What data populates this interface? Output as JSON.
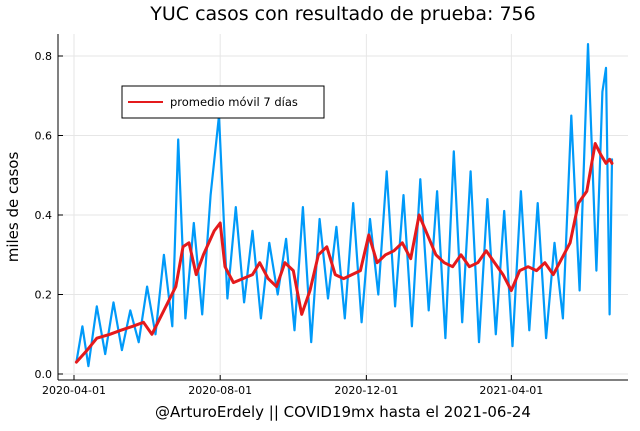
{
  "chart_data": {
    "type": "line",
    "title": "YUC casos con resultado de prueba: 756",
    "xlabel": "@ArturoErdely || COVID19mx hasta el 2021-06-24",
    "ylabel": "miles de casos",
    "x_range": [
      "2020-04-01",
      "2021-06-24"
    ],
    "ylim": [
      0,
      0.86
    ],
    "x_ticks": [
      {
        "date": "2020-04-01",
        "label": "2020-04-01"
      },
      {
        "date": "2020-08-01",
        "label": "2020-08-01"
      },
      {
        "date": "2020-12-01",
        "label": "2020-12-01"
      },
      {
        "date": "2021-04-01",
        "label": "2021-04-01"
      }
    ],
    "y_ticks": [
      {
        "value": 0.0,
        "label": "0.0"
      },
      {
        "value": 0.2,
        "label": "0.2"
      },
      {
        "value": 0.4,
        "label": "0.4"
      },
      {
        "value": 0.6,
        "label": "0.6"
      },
      {
        "value": 0.8,
        "label": "0.8"
      }
    ],
    "grid": true,
    "legend": {
      "placement": "top-left",
      "entries": [
        "promedio móvil 7 días"
      ]
    },
    "colors": {
      "daily": "#009af9",
      "avg": "#e41a1c"
    },
    "series": [
      {
        "name": "",
        "color": "#009af9",
        "x": [
          "2020-04-03",
          "2020-04-08",
          "2020-04-13",
          "2020-04-20",
          "2020-04-27",
          "2020-05-04",
          "2020-05-11",
          "2020-05-18",
          "2020-05-25",
          "2020-06-01",
          "2020-06-08",
          "2020-06-15",
          "2020-06-22",
          "2020-06-27",
          "2020-07-03",
          "2020-07-10",
          "2020-07-17",
          "2020-07-24",
          "2020-07-31",
          "2020-08-07",
          "2020-08-14",
          "2020-08-21",
          "2020-08-28",
          "2020-09-04",
          "2020-09-11",
          "2020-09-18",
          "2020-09-25",
          "2020-10-02",
          "2020-10-09",
          "2020-10-16",
          "2020-10-23",
          "2020-10-30",
          "2020-11-06",
          "2020-11-13",
          "2020-11-20",
          "2020-11-27",
          "2020-12-04",
          "2020-12-11",
          "2020-12-18",
          "2020-12-25",
          "2021-01-01",
          "2021-01-08",
          "2021-01-15",
          "2021-01-22",
          "2021-01-29",
          "2021-02-05",
          "2021-02-12",
          "2021-02-19",
          "2021-02-26",
          "2021-03-05",
          "2021-03-12",
          "2021-03-19",
          "2021-03-26",
          "2021-04-02",
          "2021-04-09",
          "2021-04-16",
          "2021-04-23",
          "2021-04-30",
          "2021-05-07",
          "2021-05-14",
          "2021-05-21",
          "2021-05-28",
          "2021-06-04",
          "2021-06-11",
          "2021-06-16",
          "2021-06-19",
          "2021-06-22",
          "2021-06-24"
        ],
        "values": [
          0.03,
          0.12,
          0.02,
          0.17,
          0.05,
          0.18,
          0.06,
          0.16,
          0.08,
          0.22,
          0.1,
          0.3,
          0.12,
          0.59,
          0.14,
          0.38,
          0.15,
          0.45,
          0.65,
          0.19,
          0.42,
          0.18,
          0.36,
          0.14,
          0.33,
          0.2,
          0.34,
          0.11,
          0.42,
          0.08,
          0.39,
          0.19,
          0.37,
          0.14,
          0.43,
          0.13,
          0.39,
          0.2,
          0.51,
          0.17,
          0.45,
          0.12,
          0.49,
          0.16,
          0.46,
          0.09,
          0.56,
          0.13,
          0.51,
          0.08,
          0.44,
          0.1,
          0.41,
          0.07,
          0.46,
          0.11,
          0.43,
          0.09,
          0.33,
          0.14,
          0.65,
          0.21,
          0.83,
          0.26,
          0.71,
          0.77,
          0.15,
          0.54
        ]
      },
      {
        "name": "promedio móvil 7 días",
        "color": "#e41a1c",
        "x": [
          "2020-04-03",
          "2020-04-12",
          "2020-04-20",
          "2020-05-01",
          "2020-05-10",
          "2020-05-20",
          "2020-05-29",
          "2020-06-05",
          "2020-06-15",
          "2020-06-25",
          "2020-07-01",
          "2020-07-06",
          "2020-07-12",
          "2020-07-18",
          "2020-07-27",
          "2020-08-01",
          "2020-08-05",
          "2020-08-12",
          "2020-08-20",
          "2020-08-28",
          "2020-09-03",
          "2020-09-10",
          "2020-09-17",
          "2020-09-24",
          "2020-10-01",
          "2020-10-08",
          "2020-10-15",
          "2020-10-22",
          "2020-10-29",
          "2020-11-05",
          "2020-11-12",
          "2020-11-19",
          "2020-11-26",
          "2020-12-03",
          "2020-12-10",
          "2020-12-17",
          "2020-12-24",
          "2020-12-31",
          "2021-01-07",
          "2021-01-14",
          "2021-01-21",
          "2021-01-28",
          "2021-02-04",
          "2021-02-11",
          "2021-02-18",
          "2021-02-25",
          "2021-03-04",
          "2021-03-11",
          "2021-03-18",
          "2021-03-25",
          "2021-04-01",
          "2021-04-08",
          "2021-04-15",
          "2021-04-22",
          "2021-04-29",
          "2021-05-06",
          "2021-05-13",
          "2021-05-20",
          "2021-05-27",
          "2021-06-03",
          "2021-06-10",
          "2021-06-15",
          "2021-06-19",
          "2021-06-22",
          "2021-06-24"
        ],
        "values": [
          0.03,
          0.06,
          0.09,
          0.1,
          0.11,
          0.12,
          0.13,
          0.1,
          0.16,
          0.22,
          0.32,
          0.33,
          0.25,
          0.3,
          0.36,
          0.38,
          0.27,
          0.23,
          0.24,
          0.25,
          0.28,
          0.24,
          0.22,
          0.28,
          0.26,
          0.15,
          0.21,
          0.3,
          0.32,
          0.25,
          0.24,
          0.25,
          0.26,
          0.35,
          0.28,
          0.3,
          0.31,
          0.33,
          0.29,
          0.4,
          0.35,
          0.3,
          0.28,
          0.27,
          0.3,
          0.27,
          0.28,
          0.31,
          0.28,
          0.25,
          0.21,
          0.26,
          0.27,
          0.26,
          0.28,
          0.25,
          0.29,
          0.33,
          0.43,
          0.46,
          0.58,
          0.55,
          0.53,
          0.54,
          0.53
        ]
      }
    ]
  }
}
